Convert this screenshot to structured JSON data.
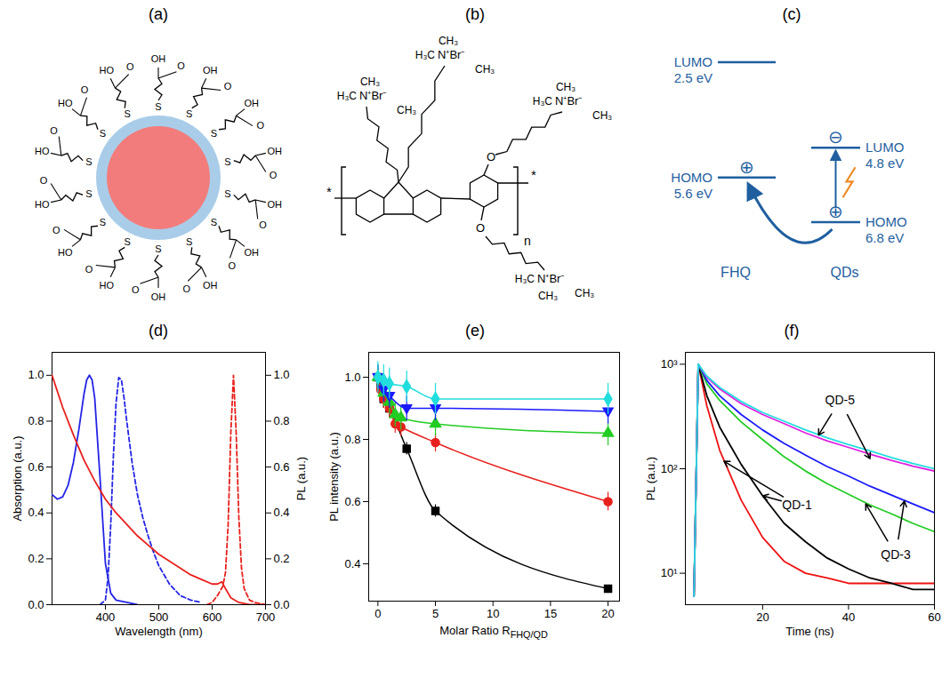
{
  "panel_labels": [
    "(a)",
    "(b)",
    "(c)",
    "(d)",
    "(e)",
    "(f)"
  ],
  "diagrams": {
    "a": {
      "ligand_count": 14,
      "atoms": {
        "anchor": "S",
        "carbonyl": "O",
        "hydroxyl_right": "OH",
        "hydroxyl_left": "HO"
      }
    },
    "b": {
      "methyl_left": "H₃C",
      "methyl_right": "CH₃",
      "ammonium": "N⁺Br⁻",
      "ether": "O",
      "chain_end": "*",
      "repeat": "n"
    },
    "c": {
      "materials": [
        "FHQ",
        "QDs"
      ],
      "electron": "⊖",
      "hole": "⊕",
      "levels": [
        {
          "material": "FHQ",
          "name": "LUMO",
          "energy": 2.5,
          "label": "2.5 eV"
        },
        {
          "material": "FHQ",
          "name": "HOMO",
          "energy": 5.6,
          "label": "5.6 eV"
        },
        {
          "material": "QDs",
          "name": "LUMO",
          "energy": 4.8,
          "label": "4.8 eV"
        },
        {
          "material": "QDs",
          "name": "HOMO",
          "energy": 6.8,
          "label": "6.8 eV"
        }
      ]
    }
  },
  "chart_data": [
    {
      "type": "line",
      "xlabel": "Wavelength (nm)",
      "ylabel": "Absorption (a.u.)",
      "y2label": "PL (a.u.)",
      "xlim": [
        300,
        700
      ],
      "xticks": [
        400,
        500,
        600,
        700
      ],
      "ylim": [
        0,
        1.1
      ],
      "yticks": [
        {
          "value": 0,
          "label": "0.0"
        },
        {
          "value": 0.2,
          "label": "0.2"
        },
        {
          "value": 0.4,
          "label": "0.4"
        },
        {
          "value": 0.6,
          "label": "0.6"
        },
        {
          "value": 0.8,
          "label": "0.8"
        },
        {
          "value": 1,
          "label": "1.0"
        }
      ],
      "y2lim": [
        0,
        1.1
      ],
      "y2ticks": [
        {
          "value": 0,
          "label": "0.0"
        },
        {
          "value": 0.2,
          "label": "0.2"
        },
        {
          "value": 0.4,
          "label": "0.4"
        },
        {
          "value": 0.6,
          "label": "0.6"
        },
        {
          "value": 0.8,
          "label": "0.8"
        },
        {
          "value": 1,
          "label": "1.0"
        }
      ],
      "series": [
        {
          "color": "#2424e6",
          "line_style": "solid",
          "x": [
            300,
            310,
            320,
            330,
            340,
            350,
            360,
            365,
            370,
            375,
            380,
            390,
            400,
            410,
            420,
            440,
            460
          ],
          "values": [
            0.48,
            0.46,
            0.47,
            0.52,
            0.62,
            0.76,
            0.92,
            0.98,
            1.0,
            0.98,
            0.9,
            0.55,
            0.18,
            0.05,
            0.02,
            0.01,
            0.0
          ]
        },
        {
          "color": "#2424e6",
          "line_style": "dashed",
          "axis": "y2",
          "x": [
            390,
            400,
            405,
            410,
            415,
            420,
            425,
            430,
            435,
            440,
            450,
            460,
            470,
            480,
            490,
            500,
            520,
            540,
            560,
            580
          ],
          "values": [
            0,
            0.02,
            0.12,
            0.35,
            0.65,
            0.88,
            0.99,
            0.98,
            0.9,
            0.8,
            0.62,
            0.48,
            0.38,
            0.3,
            0.23,
            0.17,
            0.09,
            0.04,
            0.02,
            0.01
          ]
        },
        {
          "color": "#e8201c",
          "line_style": "solid",
          "x": [
            300,
            320,
            340,
            360,
            380,
            400,
            420,
            440,
            460,
            480,
            500,
            520,
            540,
            560,
            580,
            600,
            610,
            618,
            625,
            635,
            650,
            670,
            700
          ],
          "values": [
            1.0,
            0.86,
            0.74,
            0.63,
            0.54,
            0.46,
            0.4,
            0.35,
            0.3,
            0.26,
            0.22,
            0.19,
            0.16,
            0.13,
            0.11,
            0.09,
            0.09,
            0.1,
            0.07,
            0.03,
            0.01,
            0.0,
            0.0
          ]
        },
        {
          "color": "#e8201c",
          "line_style": "dashed",
          "axis": "y2",
          "x": [
            590,
            600,
            610,
            615,
            620,
            625,
            630,
            635,
            640,
            645,
            650,
            655,
            660,
            670,
            680,
            700
          ],
          "values": [
            0,
            0.01,
            0.04,
            0.06,
            0.08,
            0.14,
            0.35,
            0.75,
            1.0,
            0.75,
            0.38,
            0.16,
            0.07,
            0.02,
            0.01,
            0
          ]
        }
      ]
    },
    {
      "type": "scatter",
      "xlabel": {
        "text": "Molar Ratio R",
        "subscript": "FHQ/QD"
      },
      "ylabel": "PL intensity (a.u.)",
      "xlim": [
        -0.8,
        21
      ],
      "xticks": [
        0,
        5,
        10,
        15,
        20
      ],
      "ylim": [
        0.28,
        1.08
      ],
      "yticks": [
        {
          "value": 0.4,
          "label": "0.4"
        },
        {
          "value": 0.6,
          "label": "0.6"
        },
        {
          "value": 0.8,
          "label": "0.8"
        },
        {
          "value": 1,
          "label": "1.0"
        }
      ],
      "series": [
        {
          "color": "#000000",
          "marker": "square",
          "line_style": "solid",
          "x": [
            0,
            0.25,
            0.5,
            1,
            2.5,
            5,
            20
          ],
          "values": [
            1.0,
            0.97,
            0.93,
            0.9,
            0.77,
            0.57,
            0.32
          ],
          "errors": [
            0.03,
            0.03,
            0.03,
            0.03,
            0.02,
            0.02,
            0.01
          ]
        },
        {
          "color": "#e8201c",
          "marker": "circle",
          "line_style": "solid",
          "x": [
            0,
            0.25,
            0.5,
            1,
            1.5,
            2,
            5,
            20
          ],
          "values": [
            1.0,
            0.96,
            0.93,
            0.9,
            0.85,
            0.84,
            0.79,
            0.6
          ],
          "errors": [
            0.03,
            0.03,
            0.03,
            0.03,
            0.03,
            0.03,
            0.03,
            0.03
          ]
        },
        {
          "color": "#22cc22",
          "marker": "triangle",
          "line_style": "solid",
          "x": [
            0,
            0.5,
            1,
            1.5,
            2,
            5,
            20
          ],
          "values": [
            1.0,
            0.95,
            0.92,
            0.88,
            0.87,
            0.85,
            0.82
          ],
          "errors": [
            0.04,
            0.04,
            0.04,
            0.04,
            0.04,
            0.04,
            0.04
          ]
        },
        {
          "color": "#1a1aff",
          "marker": "triangle-down",
          "line_style": "solid",
          "x": [
            0,
            0.5,
            1,
            2.5,
            5,
            20
          ],
          "values": [
            1.0,
            0.96,
            0.94,
            0.9,
            0.9,
            0.89
          ],
          "errors": [
            0.04,
            0.04,
            0.04,
            0.04,
            0.04,
            0.04
          ]
        },
        {
          "color": "#22dddd",
          "marker": "diamond",
          "line_style": "solid",
          "x": [
            0,
            0.5,
            1,
            2.5,
            5,
            20
          ],
          "values": [
            1.0,
            0.99,
            0.98,
            0.97,
            0.93,
            0.93
          ],
          "errors": [
            0.05,
            0.05,
            0.05,
            0.05,
            0.05,
            0.05
          ]
        }
      ]
    },
    {
      "type": "line",
      "log": "y",
      "xlabel": "Time (ns)",
      "ylabel": "PL (a.u.)",
      "xlim": [
        2,
        60
      ],
      "xticks": [
        20,
        40,
        60
      ],
      "ylim": [
        5,
        1300
      ],
      "yticks": [
        {
          "value": 10,
          "label": "10¹"
        },
        {
          "value": 100,
          "label": "10²"
        },
        {
          "value": 1000,
          "label": "10³"
        }
      ],
      "x": [
        4,
        5,
        7,
        10,
        15,
        20,
        25,
        30,
        35,
        40,
        45,
        50,
        55,
        60
      ],
      "series": [
        {
          "color": "#ee1111",
          "values": [
            6,
            1000,
            400,
            150,
            50,
            22,
            13,
            10,
            9,
            8,
            8,
            8,
            8,
            8
          ]
        },
        {
          "color": "#000000",
          "values": [
            6,
            1000,
            500,
            250,
            110,
            55,
            30,
            20,
            14,
            11,
            9,
            8,
            7,
            7
          ]
        },
        {
          "color": "#22cc22",
          "values": [
            6,
            1000,
            650,
            450,
            280,
            190,
            130,
            95,
            72,
            57,
            45,
            37,
            30,
            25
          ]
        },
        {
          "color": "#1a1aff",
          "values": [
            6,
            1000,
            700,
            500,
            330,
            235,
            175,
            135,
            105,
            85,
            68,
            56,
            46,
            38
          ]
        },
        {
          "color": "#e020e0",
          "values": [
            6,
            1000,
            750,
            580,
            420,
            330,
            270,
            220,
            185,
            160,
            138,
            120,
            106,
            95
          ]
        },
        {
          "color": "#22dddd",
          "values": [
            6,
            1000,
            770,
            600,
            440,
            345,
            285,
            235,
            198,
            170,
            148,
            128,
            112,
            100
          ]
        }
      ],
      "annotations": [
        {
          "text": "QD-5",
          "x": 38,
          "y": 450,
          "targets": [
            [
              33,
              210
            ],
            [
              45,
              125
            ]
          ]
        },
        {
          "text": "QD-1",
          "x": 28,
          "y": 45,
          "targets": [
            [
              11,
              118
            ],
            [
              20,
              55
            ]
          ]
        },
        {
          "text": "QD-3",
          "x": 51,
          "y": 15,
          "targets": [
            [
              44,
              46
            ],
            [
              53,
              49
            ]
          ]
        }
      ]
    }
  ]
}
